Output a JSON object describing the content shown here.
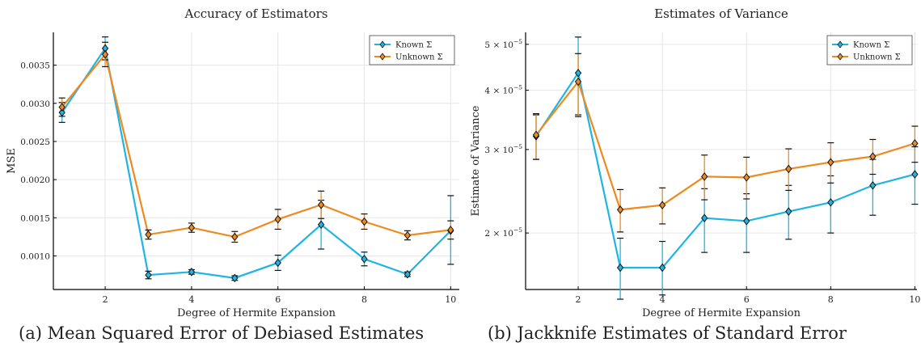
{
  "colors": {
    "known": "#1fb4e6",
    "unknown": "#ee8a1f",
    "error_bar": "#111111",
    "grid": "#e6e6e6"
  },
  "panels": [
    {
      "caption": "(a) Mean Squared Error of Debiased Estimates",
      "chart_data": {
        "type": "line",
        "title": "Accuracy of Estimators",
        "xlabel": "Degree of Hermite Expansion",
        "ylabel": "MSE",
        "grid": true,
        "legend_position": "top-right",
        "x": [
          1,
          2,
          3,
          4,
          5,
          6,
          7,
          8,
          9,
          10
        ],
        "xlim": [
          0.8,
          10.2
        ],
        "ylim": [
          0.00056,
          0.00393
        ],
        "y_scale": "linear",
        "x_ticks": [
          2,
          4,
          6,
          8,
          10
        ],
        "x_tick_labels": [
          "2",
          "4",
          "6",
          "8",
          "10"
        ],
        "y_ticks": [
          0.001,
          0.0015,
          0.002,
          0.0025,
          0.003,
          0.0035
        ],
        "y_tick_labels": [
          "0.0010",
          "0.0015",
          "0.0020",
          "0.0025",
          "0.0030",
          "0.0035"
        ],
        "series": [
          {
            "name": "Known Σ",
            "values": [
              0.00288,
              0.00372,
              0.00075,
              0.00079,
              0.00071,
              0.00091,
              0.00141,
              0.00096,
              0.00076,
              0.00133
            ],
            "err_low": [
              0.00275,
              0.00357,
              0.0007,
              0.00076,
              0.00068,
              0.00081,
              0.00109,
              0.00087,
              0.00073,
              0.00089
            ],
            "err_high": [
              0.00301,
              0.00387,
              0.0008,
              0.00082,
              0.00074,
              0.00101,
              0.00173,
              0.00105,
              0.00079,
              0.00179
            ]
          },
          {
            "name": "Unknown Σ",
            "values": [
              0.00295,
              0.00364,
              0.00128,
              0.00137,
              0.00125,
              0.00148,
              0.00167,
              0.00145,
              0.00127,
              0.00134
            ],
            "err_low": [
              0.00283,
              0.00348,
              0.00122,
              0.00131,
              0.00118,
              0.00135,
              0.00149,
              0.00135,
              0.00121,
              0.00122
            ],
            "err_high": [
              0.00307,
              0.0038,
              0.00134,
              0.00143,
              0.00132,
              0.00161,
              0.00185,
              0.00155,
              0.00133,
              0.00146
            ]
          }
        ]
      }
    },
    {
      "caption": "(b) Jackknife Estimates of Standard Error",
      "chart_data": {
        "type": "line",
        "title": "Estimates of Variance",
        "xlabel": "Degree of Hermite Expansion",
        "ylabel": "Estimate of Variance",
        "grid": true,
        "legend_position": "top-right",
        "x": [
          1,
          2,
          3,
          4,
          5,
          6,
          7,
          8,
          9,
          10
        ],
        "xlim": [
          0.75,
          10.05
        ],
        "ylim": [
          1.52e-05,
          5.3e-05
        ],
        "y_scale": "log",
        "x_ticks": [
          2,
          4,
          6,
          8,
          10
        ],
        "x_tick_labels": [
          "2",
          "4",
          "6",
          "8",
          "10"
        ],
        "y_ticks": [
          2e-05,
          3e-05,
          4e-05,
          5e-05
        ],
        "y_tick_mantissas": [
          "2",
          "3",
          "4",
          "5"
        ],
        "y_tick_base": "× 10",
        "y_tick_exp": "−5",
        "series": [
          {
            "name": "Known Σ",
            "values": [
              3.2e-05,
              4.35e-05,
              1.69e-05,
              1.69e-05,
              2.15e-05,
              2.12e-05,
              2.22e-05,
              2.32e-05,
              2.52e-05,
              2.66e-05
            ],
            "err_low": [
              2.86e-05,
              3.55e-05,
              1.45e-05,
              1.48e-05,
              1.82e-05,
              1.82e-05,
              1.94e-05,
              2e-05,
              2.18e-05,
              2.3e-05
            ],
            "err_high": [
              3.55e-05,
              5.18e-05,
              1.95e-05,
              1.92e-05,
              2.48e-05,
              2.42e-05,
              2.52e-05,
              2.64e-05,
              2.86e-05,
              3.04e-05
            ]
          },
          {
            "name": "Unknown Σ",
            "values": [
              3.22e-05,
              4.17e-05,
              2.24e-05,
              2.29e-05,
              2.63e-05,
              2.62e-05,
              2.73e-05,
              2.82e-05,
              2.9e-05,
              3.09e-05
            ],
            "err_low": [
              2.86e-05,
              3.52e-05,
              2.01e-05,
              2.09e-05,
              2.35e-05,
              2.36e-05,
              2.46e-05,
              2.55e-05,
              2.66e-05,
              2.82e-05
            ],
            "err_high": [
              3.57e-05,
              4.78e-05,
              2.47e-05,
              2.49e-05,
              2.92e-05,
              2.89e-05,
              3.01e-05,
              3.1e-05,
              3.15e-05,
              3.36e-05
            ]
          }
        ]
      }
    }
  ]
}
